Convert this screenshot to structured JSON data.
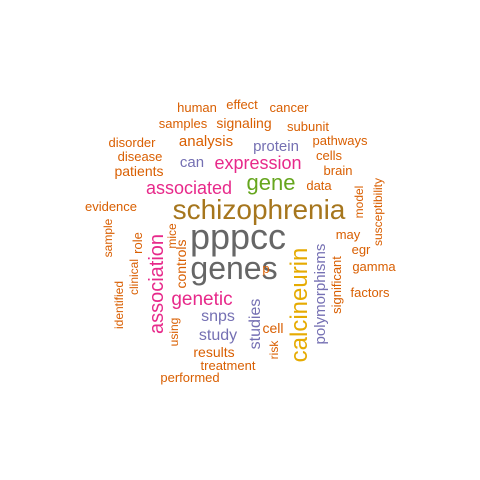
{
  "colors": {
    "orange": "#d95f02",
    "slate": "#7570b3",
    "magenta": "#e7298a",
    "green": "#66a61e",
    "mustard": "#e6ab02",
    "brown": "#a6761d",
    "gray": "#666666"
  },
  "words": [
    {
      "text": "pppcc",
      "color": "gray"
    },
    {
      "text": "genes",
      "color": "gray"
    },
    {
      "text": "schizophrenia",
      "color": "brown"
    },
    {
      "text": "calcineurin",
      "color": "mustard"
    },
    {
      "text": "gene",
      "color": "green"
    },
    {
      "text": "association",
      "color": "magenta"
    },
    {
      "text": "genetic",
      "color": "magenta"
    },
    {
      "text": "expression",
      "color": "magenta"
    },
    {
      "text": "associated",
      "color": "magenta"
    },
    {
      "text": "polymorphisms",
      "color": "slate"
    },
    {
      "text": "studies",
      "color": "slate"
    },
    {
      "text": "study",
      "color": "slate"
    },
    {
      "text": "snps",
      "color": "slate"
    },
    {
      "text": "protein",
      "color": "slate"
    },
    {
      "text": "can",
      "color": "slate"
    },
    {
      "text": "controls",
      "color": "orange"
    },
    {
      "text": "human",
      "color": "orange"
    },
    {
      "text": "effect",
      "color": "orange"
    },
    {
      "text": "cancer",
      "color": "orange"
    },
    {
      "text": "samples",
      "color": "orange"
    },
    {
      "text": "signaling",
      "color": "orange"
    },
    {
      "text": "subunit",
      "color": "orange"
    },
    {
      "text": "disorder",
      "color": "orange"
    },
    {
      "text": "analysis",
      "color": "orange"
    },
    {
      "text": "pathways",
      "color": "orange"
    },
    {
      "text": "disease",
      "color": "orange"
    },
    {
      "text": "cells",
      "color": "orange"
    },
    {
      "text": "patients",
      "color": "orange"
    },
    {
      "text": "brain",
      "color": "orange"
    },
    {
      "text": "data",
      "color": "orange"
    },
    {
      "text": "evidence",
      "color": "orange"
    },
    {
      "text": "susceptibility",
      "color": "orange"
    },
    {
      "text": "model",
      "color": "orange"
    },
    {
      "text": "sample",
      "color": "orange"
    },
    {
      "text": "role",
      "color": "orange"
    },
    {
      "text": "mice",
      "color": "orange"
    },
    {
      "text": "may",
      "color": "orange"
    },
    {
      "text": "egr",
      "color": "orange"
    },
    {
      "text": "clinical",
      "color": "orange"
    },
    {
      "text": "significant",
      "color": "orange"
    },
    {
      "text": "gamma",
      "color": "orange"
    },
    {
      "text": "identified",
      "color": "orange"
    },
    {
      "text": "p",
      "color": "orange"
    },
    {
      "text": "factors",
      "color": "orange"
    },
    {
      "text": "using",
      "color": "orange"
    },
    {
      "text": "cell",
      "color": "orange"
    },
    {
      "text": "risk",
      "color": "orange"
    },
    {
      "text": "results",
      "color": "orange"
    },
    {
      "text": "treatment",
      "color": "orange"
    },
    {
      "text": "performed",
      "color": "orange"
    }
  ]
}
